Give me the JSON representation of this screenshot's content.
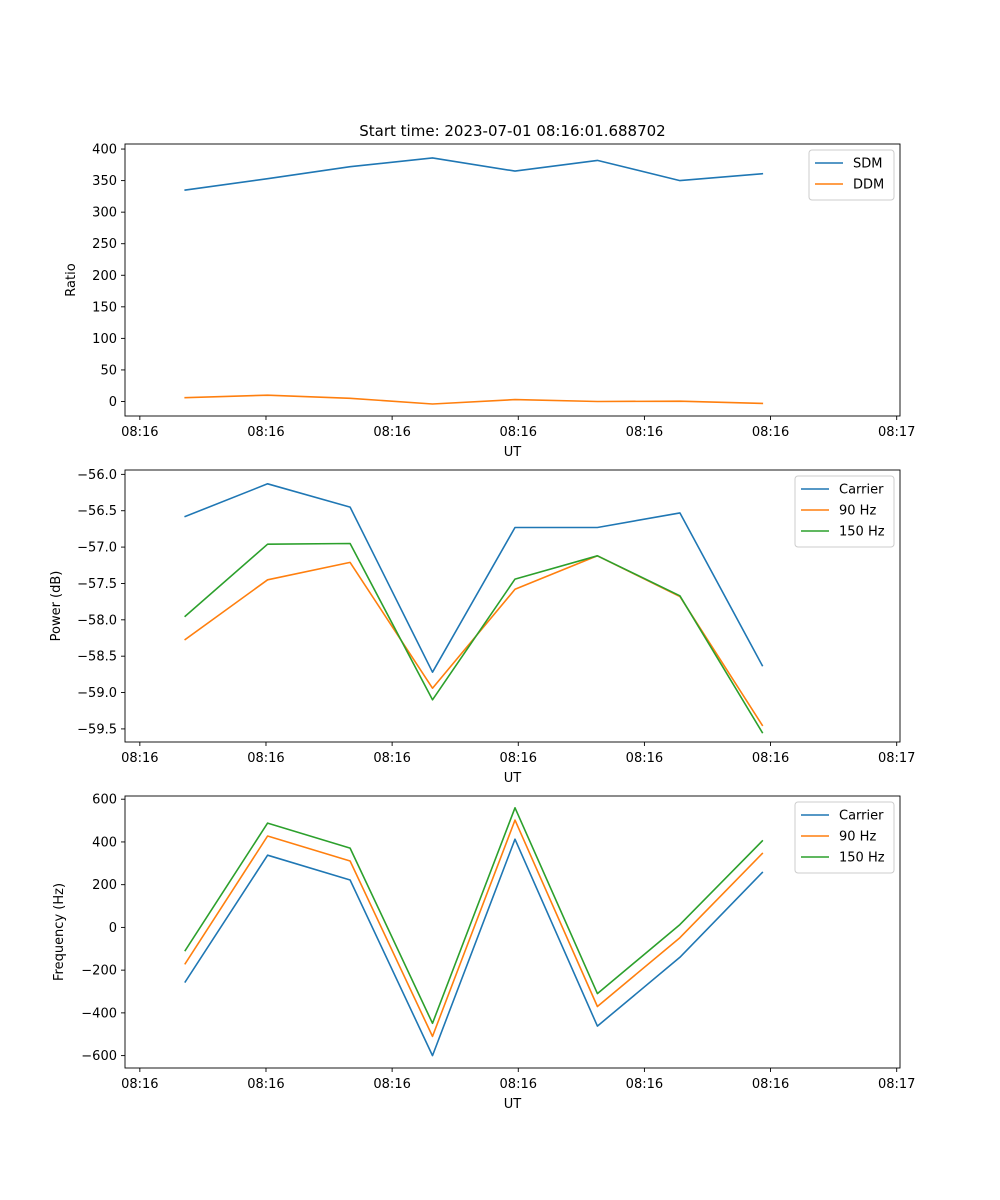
{
  "chart_data": [
    {
      "type": "line",
      "title": "Start time: 2023-07-01 08:16:01.688702",
      "xlabel": "UT",
      "ylabel": "Ratio",
      "x": [
        1,
        2,
        3,
        4,
        5,
        6,
        7,
        8
      ],
      "xlim": [
        0.27,
        9.67
      ],
      "xticks": [
        0.45,
        1.98,
        3.51,
        5.04,
        6.57,
        8.1,
        9.63
      ],
      "xtick_labels": [
        "08:16",
        "08:16",
        "08:16",
        "08:16",
        "08:16",
        "08:16",
        "08:17"
      ],
      "ylim": [
        -23,
        408
      ],
      "yticks": [
        0,
        50,
        100,
        150,
        200,
        250,
        300,
        350,
        400
      ],
      "ytick_labels": [
        "0",
        "50",
        "100",
        "150",
        "200",
        "250",
        "300",
        "350",
        "400"
      ],
      "legend_position": "top-right",
      "series": [
        {
          "name": "SDM",
          "color": "#1f77b4",
          "values": [
            335,
            353,
            372,
            386,
            365,
            382,
            350,
            361
          ]
        },
        {
          "name": "DDM",
          "color": "#ff7f0e",
          "values": [
            6,
            10,
            5,
            -4,
            3,
            0,
            0.5,
            -3
          ]
        }
      ]
    },
    {
      "type": "line",
      "title": "",
      "xlabel": "UT",
      "ylabel": "Power (dB)",
      "x": [
        1,
        2,
        3,
        4,
        5,
        6,
        7,
        8
      ],
      "xlim": [
        0.27,
        9.67
      ],
      "xticks": [
        0.45,
        1.98,
        3.51,
        5.04,
        6.57,
        8.1,
        9.63
      ],
      "xtick_labels": [
        "08:16",
        "08:16",
        "08:16",
        "08:16",
        "08:16",
        "08:16",
        "08:17"
      ],
      "ylim": [
        -59.68,
        -55.94
      ],
      "yticks": [
        -56.0,
        -56.5,
        -57.0,
        -57.5,
        -58.0,
        -58.5,
        -59.0,
        -59.5
      ],
      "ytick_labels": [
        "−56.0",
        "−56.5",
        "−57.0",
        "−57.5",
        "−58.0",
        "−58.5",
        "−59.0",
        "−59.5"
      ],
      "legend_position": "top-right",
      "series": [
        {
          "name": "Carrier",
          "color": "#1f77b4",
          "values": [
            -56.58,
            -56.13,
            -56.45,
            -58.72,
            -56.73,
            -56.73,
            -56.53,
            -58.63
          ]
        },
        {
          "name": "90 Hz",
          "color": "#ff7f0e",
          "values": [
            -58.27,
            -57.45,
            -57.21,
            -58.94,
            -57.58,
            -57.12,
            -57.68,
            -59.45
          ]
        },
        {
          "name": "150 Hz",
          "color": "#2ca02c",
          "values": [
            -57.95,
            -56.96,
            -56.95,
            -59.1,
            -57.44,
            -57.12,
            -57.67,
            -59.55
          ]
        }
      ]
    },
    {
      "type": "line",
      "title": "",
      "xlabel": "UT",
      "ylabel": "Frequency (Hz)",
      "x": [
        1,
        2,
        3,
        4,
        5,
        6,
        7,
        8
      ],
      "xlim": [
        0.27,
        9.67
      ],
      "xticks": [
        0.45,
        1.98,
        3.51,
        5.04,
        6.57,
        8.1,
        9.63
      ],
      "xtick_labels": [
        "08:16",
        "08:16",
        "08:16",
        "08:16",
        "08:16",
        "08:16",
        "08:17"
      ],
      "ylim": [
        -658,
        615
      ],
      "yticks": [
        600,
        400,
        200,
        0,
        -200,
        -400,
        -600
      ],
      "ytick_labels": [
        "600",
        "400",
        "200",
        "0",
        "−200",
        "−400",
        "−600"
      ],
      "legend_position": "top-right",
      "series": [
        {
          "name": "Carrier",
          "color": "#1f77b4",
          "values": [
            -255,
            338,
            222,
            -600,
            413,
            -462,
            -140,
            257
          ]
        },
        {
          "name": "90 Hz",
          "color": "#ff7f0e",
          "values": [
            -170,
            428,
            311,
            -510,
            502,
            -370,
            -48,
            346
          ]
        },
        {
          "name": "150 Hz",
          "color": "#2ca02c",
          "values": [
            -108,
            488,
            371,
            -449,
            560,
            -310,
            13,
            405
          ]
        }
      ]
    }
  ]
}
